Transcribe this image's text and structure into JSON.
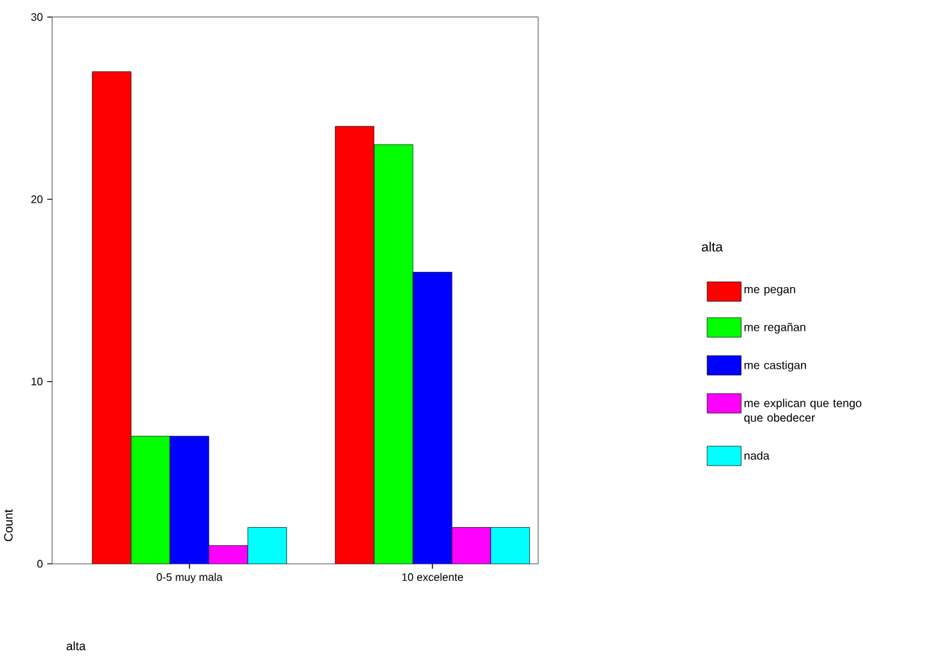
{
  "chart_data": {
    "type": "bar",
    "categories": [
      "0-5 muy mala",
      "10 excelente"
    ],
    "series": [
      {
        "name": "me pegan",
        "color": "#ff0000",
        "values": [
          27,
          24
        ]
      },
      {
        "name": "me regañan",
        "color": "#00ff00",
        "values": [
          7,
          23
        ]
      },
      {
        "name": "me castigan",
        "color": "#0000ff",
        "values": [
          7,
          16
        ]
      },
      {
        "name": "me explican que tengo que obedecer",
        "color": "#ff00ff",
        "values": [
          1,
          2
        ]
      },
      {
        "name": "nada",
        "color": "#00ffff",
        "values": [
          2,
          2
        ]
      }
    ],
    "xlabel": "alta",
    "ylabel": "Count",
    "legend_title": "alta",
    "ylim": [
      0,
      30
    ],
    "yticks": [
      0,
      10,
      20,
      30
    ],
    "grid": false,
    "legend": "right"
  }
}
